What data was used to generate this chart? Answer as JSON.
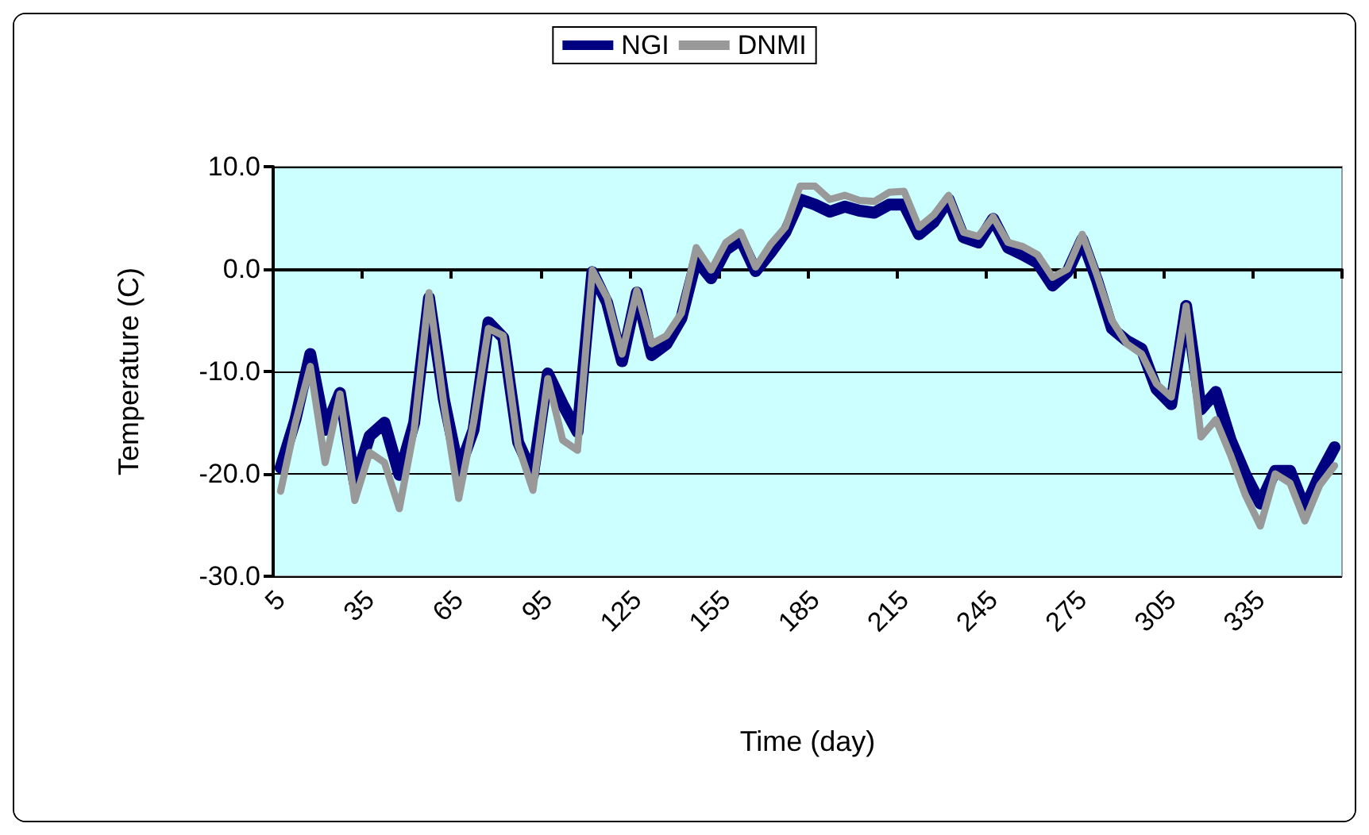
{
  "chart_data": {
    "type": "line",
    "xlabel": "Time (day)",
    "ylabel": "Temperature (C)",
    "categories": [
      "5",
      null,
      null,
      null,
      null,
      null,
      "35",
      null,
      null,
      null,
      null,
      null,
      "65",
      null,
      null,
      null,
      null,
      null,
      "95",
      null,
      null,
      null,
      null,
      null,
      "125",
      null,
      null,
      null,
      null,
      null,
      "155",
      null,
      null,
      null,
      null,
      null,
      "185",
      null,
      null,
      null,
      null,
      null,
      "215",
      null,
      null,
      null,
      null,
      null,
      "245",
      null,
      null,
      null,
      null,
      null,
      "275",
      null,
      null,
      null,
      null,
      null,
      "305",
      null,
      null,
      null,
      null,
      null,
      "335",
      null,
      null,
      null,
      null,
      null
    ],
    "series": [
      {
        "name": "NGI",
        "color": "#000080",
        "values": [
          -19.4,
          -14.7,
          -8.3,
          -15.7,
          -12.1,
          -20.9,
          -16.3,
          -15.0,
          -20.1,
          -15.0,
          -2.8,
          -12.7,
          -19.7,
          -15.7,
          -5.2,
          -6.7,
          -16.9,
          -20.1,
          -10.2,
          -13.2,
          -15.9,
          -0.3,
          -3.3,
          -9.0,
          -2.3,
          -8.4,
          -7.3,
          -4.8,
          0.9,
          -0.9,
          1.9,
          2.9,
          -0.2,
          1.6,
          3.6,
          6.8,
          6.3,
          5.6,
          6.1,
          5.7,
          5.5,
          6.3,
          6.3,
          3.4,
          4.6,
          6.8,
          3.1,
          2.6,
          4.9,
          2.1,
          1.4,
          0.6,
          -1.6,
          -0.3,
          2.9,
          -1.1,
          -5.8,
          -7.0,
          -7.8,
          -11.7,
          -13.2,
          -3.6,
          -13.7,
          -12.0,
          -16.7,
          -20.1,
          -22.9,
          -19.7,
          -19.7,
          -23.4,
          -20.1,
          -17.4
        ]
      },
      {
        "name": "DNMI",
        "color": "#999999",
        "values": [
          -21.7,
          -15.0,
          -9.5,
          -18.9,
          -12.2,
          -22.6,
          -17.9,
          -18.9,
          -23.4,
          -15.7,
          -2.3,
          -13.2,
          -22.4,
          -15.0,
          -5.8,
          -6.5,
          -17.2,
          -21.6,
          -10.7,
          -16.7,
          -17.7,
          -0.1,
          -2.8,
          -8.3,
          -2.1,
          -7.3,
          -6.5,
          -4.3,
          2.1,
          -0.1,
          2.6,
          3.6,
          0.2,
          2.4,
          4.1,
          8.1,
          8.1,
          6.8,
          7.2,
          6.7,
          6.6,
          7.5,
          7.6,
          4.1,
          5.3,
          7.2,
          3.6,
          3.2,
          5.1,
          2.6,
          2.2,
          1.4,
          -0.8,
          0.0,
          3.4,
          -0.6,
          -5.0,
          -7.3,
          -8.3,
          -11.2,
          -12.5,
          -3.6,
          -16.4,
          -14.7,
          -18.2,
          -22.1,
          -25.1,
          -20.0,
          -20.9,
          -24.6,
          -21.1,
          -19.2
        ]
      }
    ],
    "ylim": [
      -30,
      10
    ],
    "yticks": [
      {
        "value": -30,
        "label": "-30.0"
      },
      {
        "value": -20,
        "label": "-20.0"
      },
      {
        "value": -10,
        "label": "-10.0"
      },
      {
        "value": 0,
        "label": "0.0"
      },
      {
        "value": 10,
        "label": "10.0"
      }
    ],
    "grid": "y",
    "legend": "top",
    "marker": "none",
    "line_style": "solid"
  }
}
